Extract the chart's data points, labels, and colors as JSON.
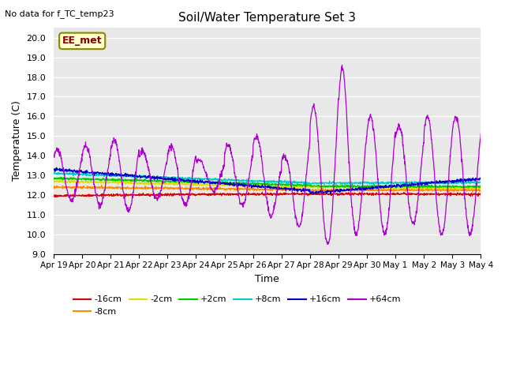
{
  "title": "Soil/Water Temperature Set 3",
  "xlabel": "Time",
  "ylabel": "Temperature (C)",
  "no_data_text": "No data for f_TC_temp23",
  "annotation_text": "EE_met",
  "ylim": [
    9.0,
    20.5
  ],
  "yticks": [
    9.0,
    10.0,
    11.0,
    12.0,
    13.0,
    14.0,
    15.0,
    16.0,
    17.0,
    18.0,
    19.0,
    20.0
  ],
  "bg_color": "#e8e8e8",
  "colors": {
    "-16cm": "#dd0000",
    "-8cm": "#ff8800",
    "-2cm": "#dddd00",
    "+2cm": "#00cc00",
    "+8cm": "#00cccc",
    "+16cm": "#0000cc",
    "+64cm": "#aa00cc"
  },
  "x_tick_labels": [
    "Apr 19",
    "Apr 20",
    "Apr 21",
    "Apr 22",
    "Apr 23",
    "Apr 24",
    "Apr 25",
    "Apr 26",
    "Apr 27",
    "Apr 28",
    "Apr 29",
    "Apr 30",
    "May 1",
    "May 2",
    "May 3",
    "May 4"
  ],
  "figsize": [
    6.4,
    4.8
  ],
  "dpi": 100
}
